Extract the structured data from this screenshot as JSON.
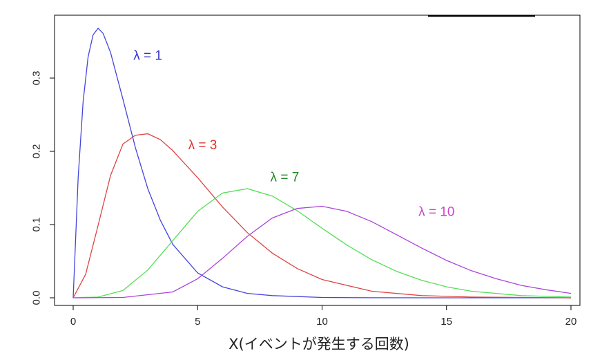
{
  "chart_data": {
    "type": "line",
    "title": "",
    "xlabel": "X(イベントが発生する回数)",
    "ylabel": "",
    "xlim": [
      0,
      20
    ],
    "ylim": [
      0,
      0.37
    ],
    "xticks": [
      0,
      5,
      10,
      15,
      20
    ],
    "yticks": [
      0.0,
      0.1,
      0.2,
      0.3
    ],
    "xtick_labels": [
      "0",
      "5",
      "10",
      "15",
      "20"
    ],
    "ytick_labels": [
      "0.0",
      "0.1",
      "0.2",
      "0.3"
    ],
    "grid": false,
    "legend": "none (series labeled inline)",
    "series": [
      {
        "name": "λ = 1",
        "color": "#4444dd",
        "x": [
          0,
          0.2,
          0.4,
          0.6,
          0.8,
          1,
          1.2,
          1.5,
          2,
          2.5,
          3,
          3.5,
          4,
          5,
          6,
          7,
          8,
          10,
          12,
          15,
          20
        ],
        "values": [
          0,
          0.164,
          0.268,
          0.329,
          0.359,
          0.368,
          0.361,
          0.335,
          0.271,
          0.205,
          0.149,
          0.106,
          0.073,
          0.034,
          0.015,
          0.006,
          0.003,
          0.0005,
          0.0001,
          0,
          0
        ]
      },
      {
        "name": "λ = 3",
        "color": "#dd4444",
        "x": [
          0,
          0.5,
          1,
          1.5,
          2,
          2.5,
          3,
          3.5,
          4,
          5,
          6,
          7,
          8,
          9,
          10,
          12,
          14,
          16,
          20
        ],
        "values": [
          0,
          0.032,
          0.099,
          0.167,
          0.21,
          0.222,
          0.224,
          0.216,
          0.201,
          0.164,
          0.124,
          0.089,
          0.061,
          0.04,
          0.025,
          0.009,
          0.003,
          0.001,
          0
        ]
      },
      {
        "name": "λ = 7",
        "color": "#55dd55",
        "x": [
          0,
          1,
          2,
          3,
          4,
          5,
          6,
          7,
          8,
          9,
          10,
          11,
          12,
          13,
          14,
          15,
          16,
          18,
          20
        ],
        "values": [
          0,
          0.001,
          0.01,
          0.038,
          0.078,
          0.118,
          0.143,
          0.149,
          0.139,
          0.119,
          0.095,
          0.072,
          0.052,
          0.036,
          0.024,
          0.015,
          0.009,
          0.003,
          0.001
        ]
      },
      {
        "name": "λ = 10",
        "color": "#aa44dd",
        "x": [
          0,
          2,
          4,
          5,
          6,
          7,
          8,
          9,
          10,
          11,
          12,
          13,
          14,
          15,
          16,
          17,
          18,
          19,
          20
        ],
        "values": [
          0,
          0.0005,
          0.008,
          0.026,
          0.054,
          0.084,
          0.109,
          0.122,
          0.125,
          0.118,
          0.104,
          0.086,
          0.068,
          0.051,
          0.037,
          0.026,
          0.017,
          0.011,
          0.006
        ]
      }
    ],
    "annotations": [
      {
        "text": "λ = 1",
        "x": 3.0,
        "y": 0.325,
        "color": "#3333cc"
      },
      {
        "text": "λ = 3",
        "x": 5.2,
        "y": 0.203,
        "color": "#dd3333"
      },
      {
        "text": "λ = 7",
        "x": 8.5,
        "y": 0.159,
        "color": "#228822"
      },
      {
        "text": "λ = 10",
        "x": 14.6,
        "y": 0.112,
        "color": "#cc44cc"
      }
    ]
  }
}
